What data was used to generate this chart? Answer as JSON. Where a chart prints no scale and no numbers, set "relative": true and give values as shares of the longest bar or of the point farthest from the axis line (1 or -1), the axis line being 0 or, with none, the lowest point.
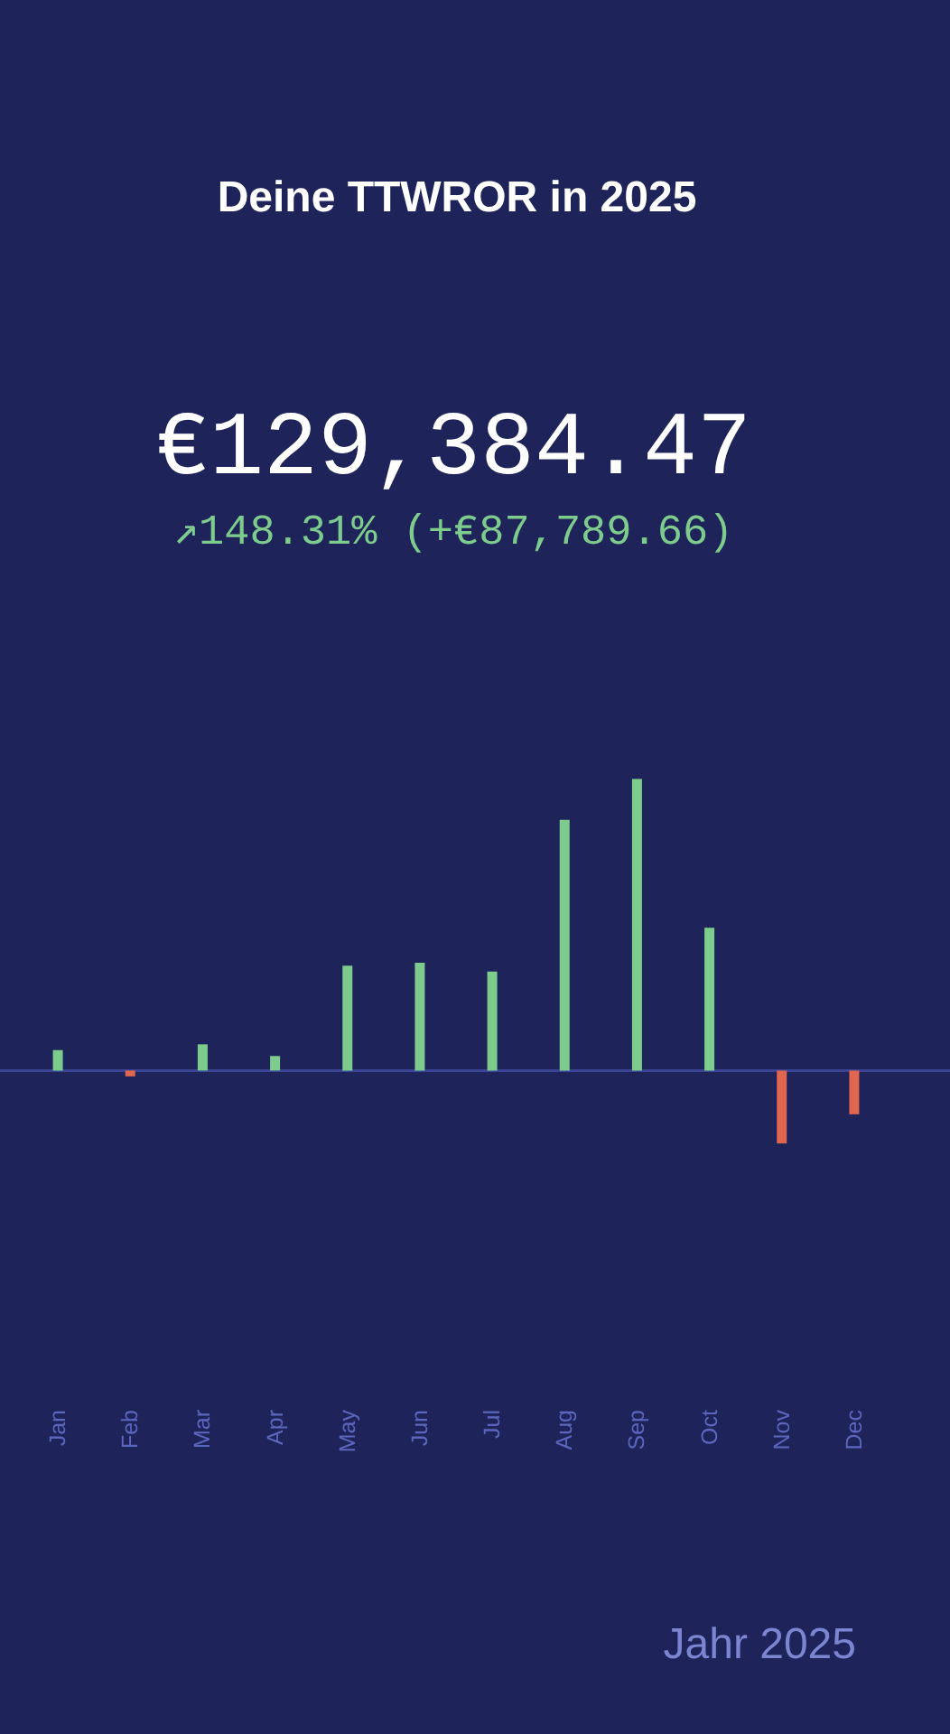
{
  "chart_data": {
    "type": "bar",
    "title": "Deine TTWROR in 2025",
    "subtitle": "€129,384.47",
    "annotations": [
      "↗148.31% (+€87,789.66)",
      "Jahr 2025"
    ],
    "categories": [
      "Jan",
      "Feb",
      "Mar",
      "Apr",
      "May",
      "Jun",
      "Jul",
      "Aug",
      "Sep",
      "Oct",
      "Nov",
      "Dec"
    ],
    "values": [
      0.07,
      -0.02,
      0.09,
      0.05,
      0.36,
      0.37,
      0.34,
      0.86,
      1,
      0.49,
      -0.25,
      -0.15
    ],
    "colors": [
      "#7ecb8e",
      "#e0664f",
      "#7ecb8e",
      "#7ecb8e",
      "#7ecb8e",
      "#7ecb8e",
      "#7ecb8e",
      "#7ecb8e",
      "#7ecb8e",
      "#7ecb8e",
      "#e0664f",
      "#e0664f"
    ],
    "ref_lines": [
      {
        "axis": "y",
        "value": 0,
        "color": "#3b4494"
      }
    ],
    "relative": true
  }
}
